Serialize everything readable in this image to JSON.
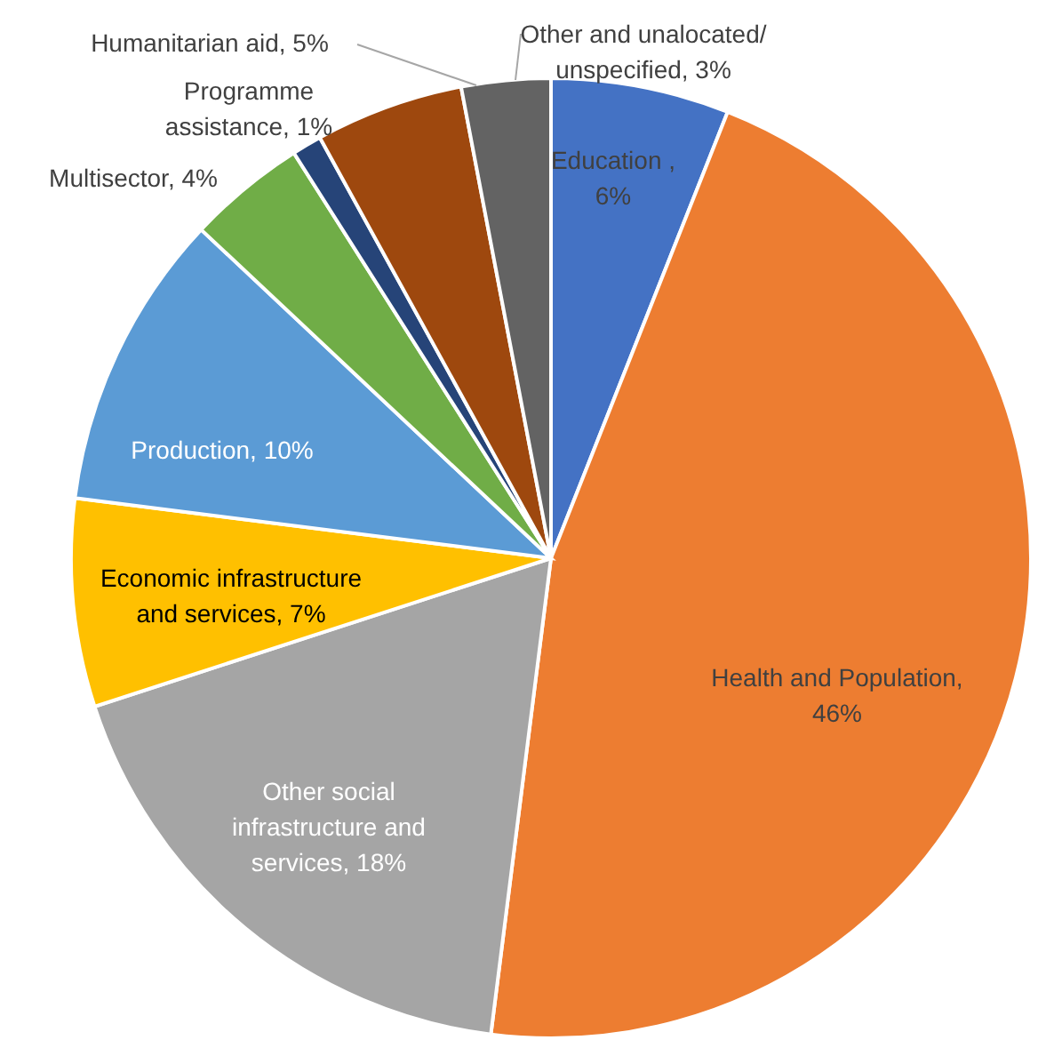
{
  "chart_data": {
    "type": "pie",
    "categories": [
      "Education ",
      "Health and Population",
      "Other social infrastructure and services",
      "Economic infrastructure and services",
      "Production",
      "Multisector",
      "Programme assistance",
      "Humanitarian aid",
      "Other and unalocated/ unspecified"
    ],
    "values": [
      6,
      46,
      18,
      7,
      10,
      4,
      1,
      5,
      3
    ],
    "value_labels": [
      ", 6%",
      ", 46%",
      ", 18%",
      ", 7%",
      ", 10%",
      ", 4%",
      ", 1%",
      ", 5%",
      ", 3%"
    ],
    "colors": [
      "#4472c4",
      "#ed7d31",
      "#a5a5a5",
      "#ffc000",
      "#5b9bd5",
      "#70ad47",
      "#264478",
      "#9e480e",
      "#636363"
    ]
  }
}
